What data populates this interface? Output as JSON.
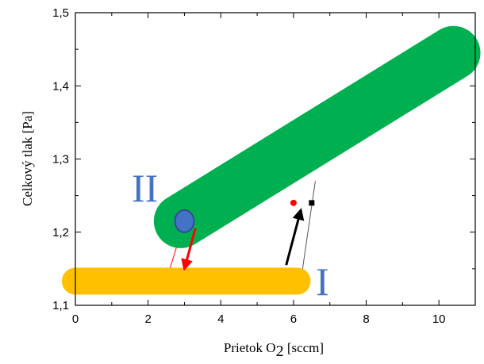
{
  "chart_data": {
    "type": "scatter",
    "xlabel": "Prietok O",
    "xlabel_sub": "2",
    "xlabel_unit": " [sccm]",
    "ylabel": "Celkový tlak [Pa]",
    "xlim": [
      0,
      11
    ],
    "ylim": [
      1.1,
      1.5
    ],
    "x_ticks": [
      "0",
      "2",
      "4",
      "6",
      "8",
      "10"
    ],
    "y_ticks": [
      "1,1",
      "1,2",
      "1,3",
      "1,4",
      "1,5"
    ],
    "grid": false,
    "regions": [
      {
        "label": "I",
        "color": "#ffc000",
        "from": {
          "x": 0,
          "y": 1.133
        },
        "to": {
          "x": 6.1,
          "y": 1.133
        }
      },
      {
        "label": "II",
        "color": "#00b050",
        "from": {
          "x": 2.9,
          "y": 1.215
        },
        "to": {
          "x": 10.4,
          "y": 1.445
        }
      }
    ],
    "points": [
      {
        "x": 6.0,
        "y": 1.24,
        "color": "#ff0000",
        "marker": "circle"
      },
      {
        "x": 6.5,
        "y": 1.24,
        "color": "#000000",
        "marker": "square"
      }
    ],
    "state_marker": {
      "x": 3.0,
      "y": 1.215,
      "color": "#4472c4"
    },
    "transitions": [
      {
        "from": {
          "x": 5.8,
          "y": 1.155
        },
        "to": {
          "x": 6.2,
          "y": 1.23
        },
        "color": "#000000"
      },
      {
        "from": {
          "x": 3.3,
          "y": 1.205
        },
        "to": {
          "x": 3.0,
          "y": 1.15
        },
        "color": "#ff0000"
      }
    ],
    "guide_lines": [
      {
        "from": {
          "x": 6.2,
          "y": 1.133
        },
        "to": {
          "x": 6.6,
          "y": 1.27
        },
        "color": "#555555"
      },
      {
        "from": {
          "x": 2.6,
          "y": 1.15
        },
        "to": {
          "x": 3.0,
          "y": 1.215
        },
        "color": "#ff0000"
      }
    ]
  }
}
